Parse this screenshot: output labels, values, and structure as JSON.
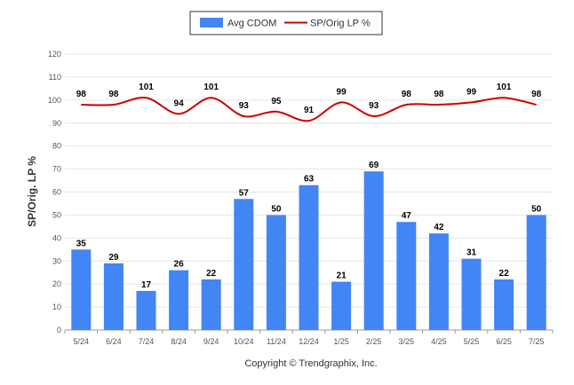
{
  "chart_data": {
    "type": "bar",
    "categories": [
      "5/24",
      "6/24",
      "7/24",
      "8/24",
      "9/24",
      "10/24",
      "11/24",
      "12/24",
      "1/25",
      "2/25",
      "3/25",
      "4/25",
      "5/25",
      "6/25",
      "7/25"
    ],
    "series": [
      {
        "name": "Avg CDOM",
        "type": "bar",
        "color": "#4285f4",
        "values": [
          35,
          29,
          17,
          26,
          22,
          57,
          50,
          63,
          21,
          69,
          47,
          42,
          31,
          22,
          50
        ]
      },
      {
        "name": "SP/Orig LP %",
        "type": "line",
        "color": "#cc0000",
        "values": [
          98,
          98,
          101,
          94,
          101,
          93,
          95,
          91,
          99,
          93,
          98,
          98,
          99,
          101,
          98
        ]
      }
    ],
    "xlabel": "",
    "ylabel": "SP/Orig. LP %",
    "ylim": [
      0,
      120
    ],
    "yticks": [
      0,
      10,
      20,
      30,
      40,
      50,
      60,
      70,
      80,
      90,
      100,
      110,
      120
    ],
    "grid": true,
    "legend": "top-center"
  },
  "legend": {
    "bar_label": "Avg CDOM",
    "line_label": "SP/Orig LP %"
  },
  "credit": "Copyright © Trendgraphix, Inc."
}
